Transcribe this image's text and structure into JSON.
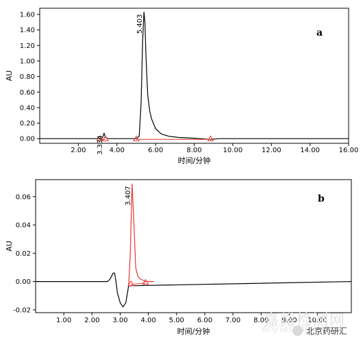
{
  "chart_data": [
    {
      "type": "line",
      "panel_label": "a",
      "xlabel": "时间/分钟",
      "ylabel": "AU",
      "xlim": [
        0,
        16
      ],
      "ylim": [
        -0.06,
        1.68
      ],
      "xticks": [
        2,
        4,
        6,
        8,
        10,
        12,
        14,
        16
      ],
      "xtick_labels": [
        "2.00",
        "4.00",
        "6.00",
        "8.00",
        "10.00",
        "12.00",
        "14.00",
        "16.00"
      ],
      "yticks": [
        0,
        0.2,
        0.4,
        0.6,
        0.8,
        1.0,
        1.2,
        1.4,
        1.6
      ],
      "ytick_labels": [
        "0.00",
        "0.20",
        "0.40",
        "0.60",
        "0.80",
        "1.00",
        "1.20",
        "1.40",
        "1.60"
      ],
      "series": [
        {
          "color": "#000000",
          "x": [
            0,
            3.05,
            3.2,
            3.26,
            3.33,
            3.4,
            3.5,
            5.0,
            5.15,
            5.25,
            5.33,
            5.4,
            5.45,
            5.5,
            5.55,
            5.6,
            5.7,
            5.8,
            6.0,
            6.3,
            6.7,
            7.2,
            8.0,
            8.85,
            9.3,
            16
          ],
          "y": [
            0,
            0,
            -0.01,
            0.02,
            0.07,
            0.02,
            0,
            0,
            0.03,
            0.45,
            1.25,
            1.63,
            1.5,
            1.1,
            0.8,
            0.55,
            0.35,
            0.25,
            0.13,
            0.06,
            0.03,
            0.015,
            0.005,
            -0.01,
            0,
            0
          ]
        }
      ],
      "integration_line": {
        "color": "#e8342f",
        "segments": [
          {
            "x": [
              3.1,
              3.4
            ],
            "y": [
              -0.01,
              -0.01
            ]
          },
          {
            "x": [
              5.0,
              8.85
            ],
            "y": [
              -0.01,
              -0.01
            ]
          }
        ]
      },
      "baseline_markers": [
        {
          "x": 3.1,
          "y": -0.01
        },
        {
          "x": 3.4,
          "y": -0.01
        },
        {
          "x": 5.0,
          "y": -0.01
        },
        {
          "x": 8.85,
          "y": -0.01
        }
      ],
      "peak_labels": [
        {
          "text": "3.334",
          "x": 3.33,
          "y": 0.07
        },
        {
          "text": "5.403",
          "x": 5.4,
          "y": 1.63
        }
      ]
    },
    {
      "type": "line",
      "panel_label": "b",
      "xlabel": "时间/分钟",
      "ylabel": "AU",
      "xlim": [
        0,
        11.2
      ],
      "ylim": [
        -0.022,
        0.072
      ],
      "xticks": [
        1,
        2,
        3,
        4,
        5,
        6,
        7,
        8,
        9,
        10
      ],
      "xtick_labels": [
        "1.00",
        "2.00",
        "3.00",
        "4.00",
        "5.00",
        "6.00",
        "7.00",
        "8.00",
        "9.00",
        "10.00"
      ],
      "yticks": [
        -0.02,
        0,
        0.02,
        0.04,
        0.06
      ],
      "ytick_labels": [
        "-0.02",
        "0.00",
        "0.02",
        "0.04",
        "0.06"
      ],
      "series": [
        {
          "color": "#000000",
          "x": [
            0,
            2.55,
            2.65,
            2.75,
            2.8,
            2.85,
            2.9,
            3.0,
            3.1,
            3.2,
            3.3,
            11.2
          ],
          "y": [
            0,
            0,
            0.002,
            0.006,
            0.006,
            0.0,
            -0.008,
            -0.015,
            -0.018,
            -0.015,
            -0.003,
            0
          ]
        },
        {
          "color": "#e8342f",
          "x": [
            3.3,
            3.36,
            3.42,
            3.48,
            3.55,
            3.62,
            3.7,
            3.8,
            3.9,
            4.2
          ],
          "y": [
            -0.003,
            0.02,
            0.069,
            0.045,
            0.01,
            0.004,
            0.002,
            0.001,
            0.0,
            0.0
          ]
        }
      ],
      "integration_line": {
        "color": "#e8342f",
        "segments": [
          {
            "x": [
              3.38,
              3.9
            ],
            "y": [
              -0.002,
              -0.001
            ]
          }
        ]
      },
      "baseline_markers": [
        {
          "x": 3.38,
          "y": -0.002
        },
        {
          "x": 3.9,
          "y": -0.001
        }
      ],
      "peak_labels": [
        {
          "text": "3.407",
          "x": 3.42,
          "y": 0.069
        }
      ]
    }
  ],
  "watermark": {
    "text_cn": "嘉峪检测网",
    "text_en": "AnyTesting.com",
    "brand": "北京药研汇",
    "logo_icon": "wechat-logo-icon"
  }
}
